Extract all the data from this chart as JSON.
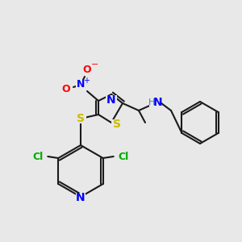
{
  "background_color": "#e8e8e8",
  "bond_color": "#1a1a1a",
  "atom_colors": {
    "N": "#0000ff",
    "O": "#ff0000",
    "S": "#ccbb00",
    "Cl": "#00aa00",
    "C": "#1a1a1a",
    "H": "#2a9090"
  },
  "figsize": [
    3.0,
    3.0
  ],
  "dpi": 100
}
